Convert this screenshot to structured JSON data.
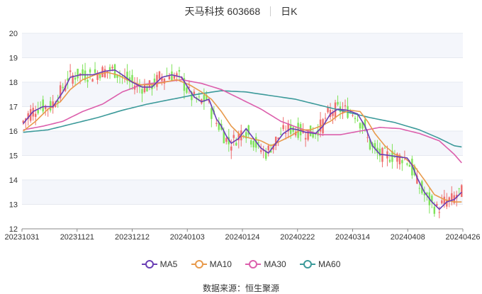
{
  "header": {
    "stock": "天马科技 603668",
    "period": "日K"
  },
  "footer": {
    "source": "数据来源：恒生聚源"
  },
  "chart_data": {
    "type": "candlestick",
    "ylim": [
      12,
      20
    ],
    "yticks": [
      12,
      13,
      14,
      15,
      16,
      17,
      18,
      19,
      20
    ],
    "xticks": [
      "20231031",
      "20231121",
      "20231212",
      "20240103",
      "20240124",
      "20240222",
      "20240314",
      "20240408",
      "20240426"
    ],
    "colors": {
      "up": "#ef6e6e",
      "down": "#7fe35a",
      "MA5": "#6a3fb5",
      "MA10": "#e89a4c",
      "MA30": "#dc5fac",
      "MA60": "#3c9a9a"
    },
    "legend": [
      "MA5",
      "MA10",
      "MA30",
      "MA60"
    ],
    "ma_series": {
      "MA5": [
        [
          0,
          16.3
        ],
        [
          4,
          16.8
        ],
        [
          8,
          17.0
        ],
        [
          12,
          17.0
        ],
        [
          16,
          17.6
        ],
        [
          19,
          18.2
        ],
        [
          23,
          18.3
        ],
        [
          28,
          18.3
        ],
        [
          33,
          18.45
        ],
        [
          37,
          18.5
        ],
        [
          40,
          18.3
        ],
        [
          44,
          18.0
        ],
        [
          48,
          17.8
        ],
        [
          52,
          17.8
        ],
        [
          56,
          18.2
        ],
        [
          60,
          18.3
        ],
        [
          64,
          18.2
        ],
        [
          67,
          17.7
        ],
        [
          69,
          17.4
        ],
        [
          72,
          17.2
        ],
        [
          75,
          17.3
        ],
        [
          78,
          16.5
        ],
        [
          80,
          16.2
        ],
        [
          82,
          15.8
        ],
        [
          84,
          15.5
        ],
        [
          87,
          15.7
        ],
        [
          90,
          16.1
        ],
        [
          93,
          15.7
        ],
        [
          96,
          15.3
        ],
        [
          99,
          15.1
        ],
        [
          102,
          15.5
        ],
        [
          105,
          15.9
        ],
        [
          108,
          16.1
        ],
        [
          111,
          16.05
        ],
        [
          114,
          15.95
        ],
        [
          118,
          15.9
        ],
        [
          121,
          16.2
        ],
        [
          124,
          16.7
        ],
        [
          127,
          16.9
        ],
        [
          131,
          16.85
        ],
        [
          135,
          16.7
        ],
        [
          138,
          16.2
        ],
        [
          141,
          15.4
        ],
        [
          144,
          15.05
        ],
        [
          148,
          15.0
        ],
        [
          151,
          14.95
        ],
        [
          155,
          14.9
        ],
        [
          157,
          14.6
        ],
        [
          159,
          14.1
        ],
        [
          162,
          13.5
        ],
        [
          165,
          13.1
        ],
        [
          168,
          12.8
        ],
        [
          171,
          13.1
        ],
        [
          174,
          13.2
        ],
        [
          177,
          13.5
        ]
      ],
      "MA10": [
        [
          0,
          16.0
        ],
        [
          5,
          16.4
        ],
        [
          10,
          16.9
        ],
        [
          15,
          17.2
        ],
        [
          19,
          17.7
        ],
        [
          24,
          18.1
        ],
        [
          29,
          18.3
        ],
        [
          34,
          18.4
        ],
        [
          38,
          18.3
        ],
        [
          42,
          18.1
        ],
        [
          47,
          17.9
        ],
        [
          52,
          17.9
        ],
        [
          57,
          18.0
        ],
        [
          62,
          18.1
        ],
        [
          67,
          17.9
        ],
        [
          72,
          17.6
        ],
        [
          76,
          17.3
        ],
        [
          80,
          16.8
        ],
        [
          84,
          16.2
        ],
        [
          88,
          15.8
        ],
        [
          92,
          15.7
        ],
        [
          96,
          15.6
        ],
        [
          100,
          15.4
        ],
        [
          104,
          15.6
        ],
        [
          108,
          15.8
        ],
        [
          112,
          16.05
        ],
        [
          116,
          16.05
        ],
        [
          120,
          16.2
        ],
        [
          124,
          16.4
        ],
        [
          128,
          16.7
        ],
        [
          132,
          16.85
        ],
        [
          136,
          16.8
        ],
        [
          139,
          16.4
        ],
        [
          142,
          15.9
        ],
        [
          146,
          15.4
        ],
        [
          150,
          15.05
        ],
        [
          154,
          14.9
        ],
        [
          158,
          14.55
        ],
        [
          162,
          14.0
        ],
        [
          166,
          13.4
        ],
        [
          170,
          13.2
        ],
        [
          174,
          13.1
        ],
        [
          177,
          13.1
        ]
      ],
      "MA30": [
        [
          0,
          16.05
        ],
        [
          8,
          16.2
        ],
        [
          16,
          16.4
        ],
        [
          24,
          16.8
        ],
        [
          32,
          17.1
        ],
        [
          40,
          17.6
        ],
        [
          48,
          17.9
        ],
        [
          56,
          18.0
        ],
        [
          64,
          18.1
        ],
        [
          72,
          17.95
        ],
        [
          80,
          17.7
        ],
        [
          88,
          17.3
        ],
        [
          96,
          16.9
        ],
        [
          104,
          16.4
        ],
        [
          112,
          16.1
        ],
        [
          120,
          15.85
        ],
        [
          128,
          15.85
        ],
        [
          136,
          16.0
        ],
        [
          144,
          16.15
        ],
        [
          152,
          16.1
        ],
        [
          160,
          15.9
        ],
        [
          168,
          15.6
        ],
        [
          174,
          15.05
        ],
        [
          177,
          14.7
        ]
      ],
      "MA60": [
        [
          0,
          15.95
        ],
        [
          10,
          16.05
        ],
        [
          20,
          16.3
        ],
        [
          30,
          16.55
        ],
        [
          40,
          16.85
        ],
        [
          50,
          17.1
        ],
        [
          60,
          17.3
        ],
        [
          70,
          17.5
        ],
        [
          80,
          17.65
        ],
        [
          90,
          17.6
        ],
        [
          100,
          17.45
        ],
        [
          110,
          17.3
        ],
        [
          120,
          17.05
        ],
        [
          130,
          16.8
        ],
        [
          140,
          16.55
        ],
        [
          150,
          16.35
        ],
        [
          160,
          16.05
        ],
        [
          168,
          15.7
        ],
        [
          174,
          15.4
        ],
        [
          177,
          15.35
        ]
      ]
    }
  }
}
